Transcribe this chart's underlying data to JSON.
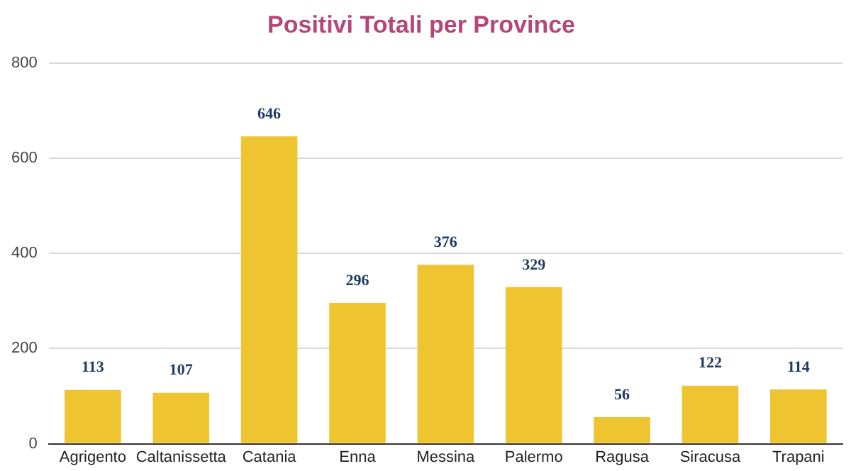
{
  "chart_data": {
    "type": "bar",
    "title": "Positivi Totali per Province",
    "categories": [
      "Agrigento",
      "Caltanissetta",
      "Catania",
      "Enna",
      "Messina",
      "Palermo",
      "Ragusa",
      "Siracusa",
      "Trapani"
    ],
    "values": [
      113,
      107,
      646,
      296,
      376,
      329,
      56,
      122,
      114
    ],
    "color": "#efc431",
    "ylim": [
      0,
      800
    ],
    "yticks": [
      0,
      200,
      400,
      600,
      800
    ],
    "grid": "y",
    "data_labels": true
  }
}
